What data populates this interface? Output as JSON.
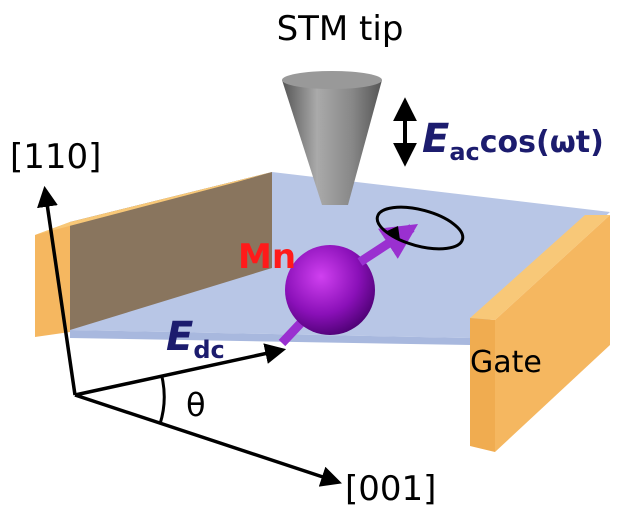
{
  "labels": {
    "stm_tip": "STM tip",
    "eac_symbol": "E",
    "eac_subscript": "ac",
    "eac_rest": "cos(ωt)",
    "axis_110": "[110]",
    "mn": "Mn",
    "edc_symbol": "E",
    "edc_subscript": "dc",
    "gate": "Gate",
    "theta": "θ",
    "axis_001": "[001]"
  }
}
